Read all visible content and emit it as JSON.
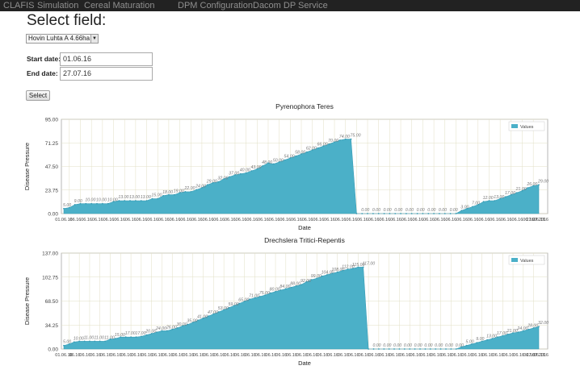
{
  "navbar": {
    "items": [
      "CLAFIS",
      "Simulation",
      "Cereal Maturation",
      "DPM Configuration",
      "Dacom DP Service"
    ]
  },
  "page": {
    "title": "Select field:",
    "field_selected": "Hovin Luhta A 4.66ha"
  },
  "form": {
    "start_label": "Start date:",
    "start_value": "01.06.16",
    "end_label": "End date:",
    "end_value": "27.07.16",
    "select_button": "Select"
  },
  "colors": {
    "navbar": "#222222",
    "area_fill": "#4bb0c8",
    "grid": "#e2dfc4"
  },
  "chart_data": [
    {
      "type": "area",
      "title": "Pyrenophora Teres",
      "xlabel": "Date",
      "ylabel": "Disease Pressure",
      "ylim": [
        0,
        95
      ],
      "yticks": [
        "0.00",
        "23.75",
        "47.50",
        "71.25",
        "95.00"
      ],
      "x_first_label": "01.06.16",
      "x_last_label": "27.07.2016",
      "legend": "Values",
      "legend_position": "top-right",
      "grid": true,
      "values": [
        5,
        6,
        9,
        10,
        10,
        10,
        10,
        10,
        10,
        12,
        13,
        13,
        13,
        13,
        13,
        13,
        15,
        15,
        18,
        19,
        19,
        21,
        22,
        22,
        24,
        26,
        29,
        31,
        32,
        35,
        37,
        39,
        40,
        41,
        43,
        45,
        48,
        51,
        50,
        52,
        54,
        56,
        58,
        60,
        62,
        64,
        66,
        68,
        70,
        72,
        74,
        75,
        75,
        0,
        0,
        0,
        0,
        0,
        0,
        0,
        0,
        0,
        0,
        0,
        0,
        0,
        0,
        0,
        0,
        0,
        0,
        0,
        3,
        5,
        7,
        9,
        12,
        13,
        13,
        15,
        17,
        19,
        21,
        23,
        26,
        28,
        29
      ]
    },
    {
      "type": "area",
      "title": "Drechslera Tritici-Repentis",
      "xlabel": "Date",
      "ylabel": "Disease Pressure",
      "ylim": [
        0,
        137
      ],
      "yticks": [
        "0.00",
        "34.25",
        "68.50",
        "102.75",
        "137.00"
      ],
      "x_first_label": "01.06.16",
      "x_last_label": "27.07.2016",
      "legend": "Values",
      "legend_position": "top-right",
      "grid": true,
      "values": [
        5,
        7,
        10,
        11,
        11,
        11,
        11,
        11,
        11,
        14,
        15,
        17,
        17,
        17,
        17,
        18,
        20,
        22,
        24,
        26,
        26,
        28,
        30,
        33,
        35,
        38,
        41,
        44,
        47,
        50,
        53,
        56,
        59,
        62,
        65,
        68,
        71,
        73,
        75,
        77,
        80,
        82,
        84,
        86,
        88,
        90,
        92,
        96,
        99,
        101,
        104,
        106,
        108,
        110,
        112,
        114,
        115,
        117,
        117,
        0,
        0,
        0,
        0,
        0,
        0,
        0,
        0,
        0,
        0,
        0,
        0,
        0,
        0,
        0,
        0,
        0,
        0,
        3,
        5,
        7,
        9,
        11,
        13,
        15,
        17,
        19,
        21,
        23,
        24,
        26,
        28,
        30,
        32
      ]
    }
  ]
}
